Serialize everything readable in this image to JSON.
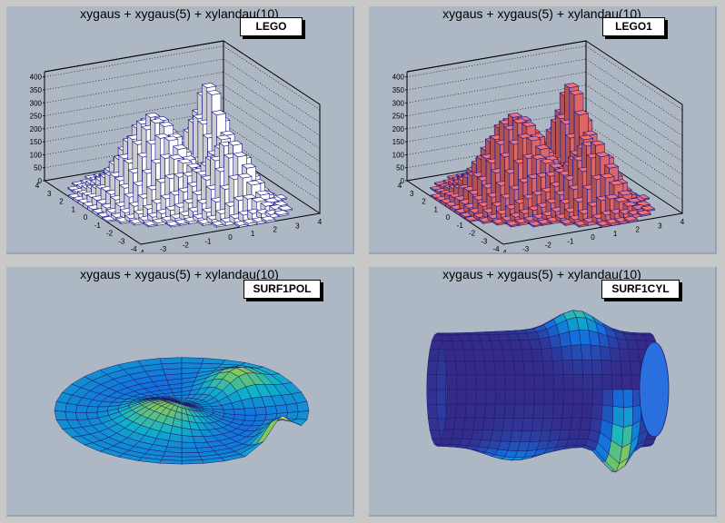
{
  "chart_data": [
    {
      "type": "lego",
      "title": "xygaus + xygaus(5) + xylandau(10)",
      "option": "LEGO",
      "fill_color": "#ffffff",
      "line_color": "#1a1a8a",
      "z_ticks": [
        "0",
        "50",
        "100",
        "150",
        "200",
        "250",
        "300",
        "350",
        "400"
      ],
      "y_ticks": [
        "4",
        "3",
        "2",
        "1",
        "0",
        "-1",
        "-2",
        "-3",
        "-4"
      ],
      "x_ticks": [
        "-4",
        "-3",
        "-2",
        "-1",
        "0",
        "1",
        "2",
        "3",
        "4"
      ],
      "zlim": [
        0,
        420
      ],
      "xlim": [
        -4,
        4
      ],
      "ylim": [
        -4,
        4
      ]
    },
    {
      "type": "lego",
      "title": "xygaus + xygaus(5) + xylandau(10)",
      "option": "LEGO1",
      "fill_color": "#dd6666",
      "line_color": "#1a1a8a",
      "z_ticks": [
        "0",
        "50",
        "100",
        "150",
        "200",
        "250",
        "300",
        "350",
        "400"
      ],
      "y_ticks": [
        "4",
        "3",
        "2",
        "1",
        "0",
        "-1",
        "-2",
        "-3",
        "-4"
      ],
      "x_ticks": [
        "-4",
        "-3",
        "-2",
        "-1",
        "0",
        "1",
        "2",
        "3",
        "4"
      ],
      "zlim": [
        0,
        420
      ],
      "xlim": [
        -4,
        4
      ],
      "ylim": [
        -4,
        4
      ]
    },
    {
      "type": "surface-polar",
      "title": "xygaus + xygaus(5) + xylandau(10)",
      "option": "SURF1POL"
    },
    {
      "type": "surface-cylindrical",
      "title": "xygaus + xygaus(5) + xylandau(10)",
      "option": "SURF1CYL"
    }
  ]
}
